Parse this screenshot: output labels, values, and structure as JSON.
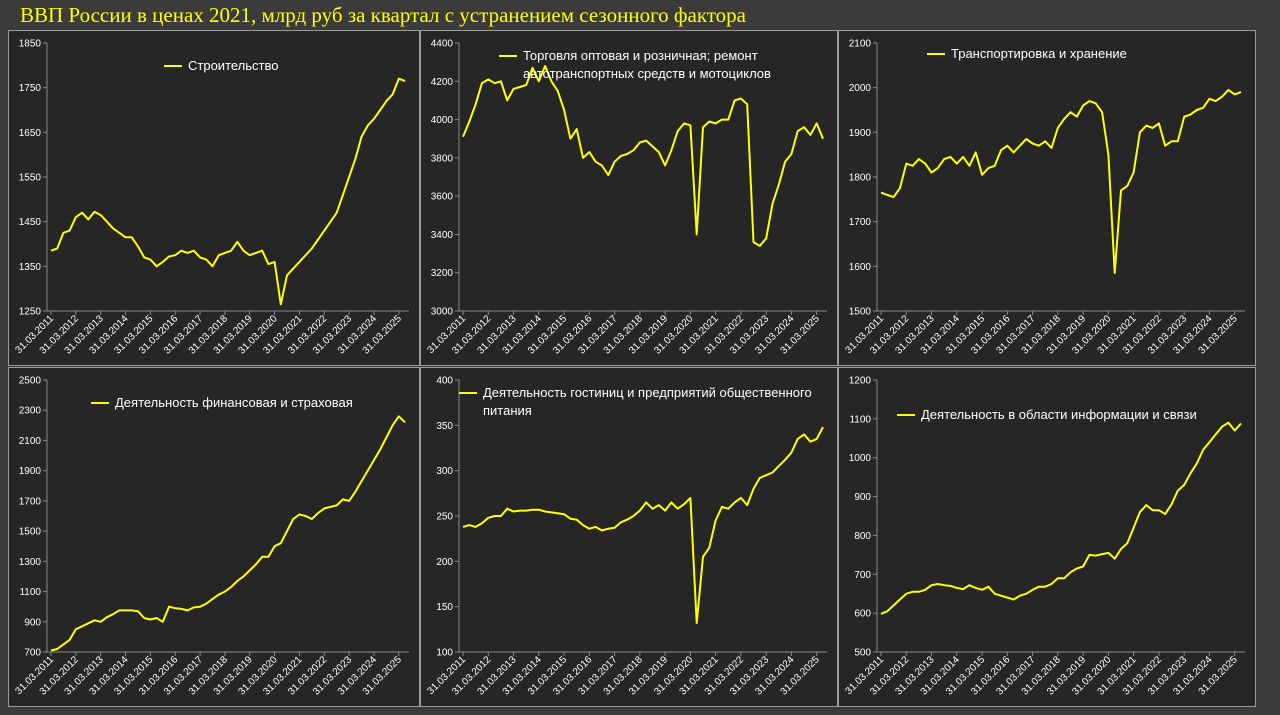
{
  "title": "ВВП России в ценах 2021, млрд руб за квартал с устранением сезонного фактора",
  "chart_data": [
    {
      "type": "line",
      "categories": [
        "31.03.2011",
        null,
        null,
        null,
        "31.03.2012",
        null,
        null,
        null,
        "31.03.2013",
        null,
        null,
        null,
        "31.03.2014",
        null,
        null,
        null,
        "31.03.2015",
        null,
        null,
        null,
        "31.03.2016",
        null,
        null,
        null,
        "31.03.2017",
        null,
        null,
        null,
        "31.03.2018",
        null,
        null,
        null,
        "31.03.2019",
        null,
        null,
        null,
        "31.03.2020",
        null,
        null,
        null,
        "31.03.2021",
        null,
        null,
        null,
        "31.03.2022",
        null,
        null,
        null,
        "31.03.2023",
        null,
        null,
        null,
        "31.03.2024",
        null,
        null,
        null,
        "31.03.2025",
        null
      ],
      "series": [
        {
          "name": "Строительство",
          "color": "#ffff00",
          "values": [
            1385,
            1390,
            1425,
            1430,
            1460,
            1470,
            1455,
            1472,
            1465,
            1450,
            1435,
            1425,
            1415,
            1415,
            1395,
            1370,
            1365,
            1350,
            1360,
            1372,
            1375,
            1385,
            1380,
            1385,
            1370,
            1365,
            1350,
            1375,
            1380,
            1385,
            1405,
            1385,
            1375,
            1380,
            1385,
            1355,
            1360,
            1265,
            1330,
            1345,
            1360,
            1375,
            1390,
            1410,
            1430,
            1450,
            1470,
            1510,
            1550,
            1590,
            1640,
            1665,
            1680,
            1700,
            1720,
            1735,
            1770,
            1765
          ]
        }
      ],
      "ylim": [
        1250,
        1850
      ],
      "yticks": [
        1250,
        1350,
        1450,
        1550,
        1650,
        1750,
        1850
      ]
    },
    {
      "type": "line",
      "categories": [
        "31.03.2011",
        null,
        null,
        null,
        "31.03.2012",
        null,
        null,
        null,
        "31.03.2013",
        null,
        null,
        null,
        "31.03.2014",
        null,
        null,
        null,
        "31.03.2015",
        null,
        null,
        null,
        "31.03.2016",
        null,
        null,
        null,
        "31.03.2017",
        null,
        null,
        null,
        "31.03.2018",
        null,
        null,
        null,
        "31.03.2019",
        null,
        null,
        null,
        "31.03.2020",
        null,
        null,
        null,
        "31.03.2021",
        null,
        null,
        null,
        "31.03.2022",
        null,
        null,
        null,
        "31.03.2023",
        null,
        null,
        null,
        "31.03.2024",
        null,
        null,
        null,
        "31.03.2025",
        null
      ],
      "series": [
        {
          "name": "Торговля оптовая и розничная; ремонт автотранспортных средств и мотоциклов",
          "color": "#ffff00",
          "values": [
            3910,
            3990,
            4080,
            4190,
            4210,
            4190,
            4200,
            4100,
            4160,
            4170,
            4180,
            4270,
            4200,
            4280,
            4200,
            4150,
            4050,
            3900,
            3950,
            3800,
            3830,
            3780,
            3760,
            3710,
            3780,
            3810,
            3820,
            3840,
            3880,
            3890,
            3860,
            3830,
            3760,
            3840,
            3940,
            3980,
            3970,
            3400,
            3960,
            3990,
            3980,
            4000,
            4000,
            4100,
            4110,
            4080,
            3360,
            3340,
            3380,
            3560,
            3660,
            3780,
            3820,
            3940,
            3960,
            3920,
            3980,
            3900
          ]
        }
      ],
      "ylim": [
        3000,
        4400
      ],
      "yticks": [
        3000,
        3200,
        3400,
        3600,
        3800,
        4000,
        4200,
        4400
      ]
    },
    {
      "type": "line",
      "categories": [
        "31.03.2011",
        null,
        null,
        null,
        "31.03.2012",
        null,
        null,
        null,
        "31.03.2013",
        null,
        null,
        null,
        "31.03.2014",
        null,
        null,
        null,
        "31.03.2015",
        null,
        null,
        null,
        "31.03.2016",
        null,
        null,
        null,
        "31.03.2017",
        null,
        null,
        null,
        "31.03.2018",
        null,
        null,
        null,
        "31.03.2019",
        null,
        null,
        null,
        "31.03.2020",
        null,
        null,
        null,
        "31.03.2021",
        null,
        null,
        null,
        "31.03.2022",
        null,
        null,
        null,
        "31.03.2023",
        null,
        null,
        null,
        "31.03.2024",
        null,
        null,
        null,
        "31.03.2025",
        null
      ],
      "series": [
        {
          "name": "Транспортировка и хранение",
          "color": "#ffff00",
          "values": [
            1765,
            1760,
            1755,
            1775,
            1830,
            1825,
            1840,
            1830,
            1810,
            1820,
            1840,
            1845,
            1830,
            1845,
            1825,
            1855,
            1805,
            1820,
            1825,
            1860,
            1870,
            1855,
            1870,
            1885,
            1875,
            1870,
            1880,
            1865,
            1910,
            1930,
            1945,
            1935,
            1960,
            1970,
            1965,
            1945,
            1850,
            1585,
            1770,
            1780,
            1810,
            1900,
            1915,
            1910,
            1920,
            1870,
            1880,
            1880,
            1935,
            1940,
            1950,
            1955,
            1975,
            1970,
            1980,
            1995,
            1985,
            1990
          ]
        }
      ],
      "ylim": [
        1500,
        2100
      ],
      "yticks": [
        1500,
        1600,
        1700,
        1800,
        1900,
        2000,
        2100
      ]
    },
    {
      "type": "line",
      "categories": [
        "31.03.2011",
        null,
        null,
        null,
        "31.03.2012",
        null,
        null,
        null,
        "31.03.2013",
        null,
        null,
        null,
        "31.03.2014",
        null,
        null,
        null,
        "31.03.2015",
        null,
        null,
        null,
        "31.03.2016",
        null,
        null,
        null,
        "31.03.2017",
        null,
        null,
        null,
        "31.03.2018",
        null,
        null,
        null,
        "31.03.2019",
        null,
        null,
        null,
        "31.03.2020",
        null,
        null,
        null,
        "31.03.2021",
        null,
        null,
        null,
        "31.03.2022",
        null,
        null,
        null,
        "31.03.2023",
        null,
        null,
        null,
        "31.03.2024",
        null,
        null,
        null,
        "31.03.2025",
        null
      ],
      "series": [
        {
          "name": "Деятельность финансовая и страховая",
          "color": "#ffff00",
          "values": [
            710,
            720,
            750,
            780,
            850,
            870,
            890,
            910,
            900,
            930,
            950,
            975,
            975,
            975,
            970,
            925,
            915,
            925,
            900,
            1000,
            990,
            985,
            975,
            995,
            1000,
            1020,
            1050,
            1080,
            1100,
            1130,
            1170,
            1200,
            1240,
            1280,
            1330,
            1330,
            1400,
            1420,
            1500,
            1580,
            1610,
            1600,
            1580,
            1620,
            1650,
            1660,
            1670,
            1710,
            1700,
            1760,
            1830,
            1900,
            1970,
            2040,
            2120,
            2200,
            2260,
            2220
          ]
        }
      ],
      "ylim": [
        700,
        2500
      ],
      "yticks": [
        700,
        900,
        1100,
        1300,
        1500,
        1700,
        1900,
        2100,
        2300,
        2500
      ]
    },
    {
      "type": "line",
      "categories": [
        "31.03.2011",
        null,
        null,
        null,
        "31.03.2012",
        null,
        null,
        null,
        "31.03.2013",
        null,
        null,
        null,
        "31.03.2014",
        null,
        null,
        null,
        "31.03.2015",
        null,
        null,
        null,
        "31.03.2016",
        null,
        null,
        null,
        "31.03.2017",
        null,
        null,
        null,
        "31.03.2018",
        null,
        null,
        null,
        "31.03.2019",
        null,
        null,
        null,
        "31.03.2020",
        null,
        null,
        null,
        "31.03.2021",
        null,
        null,
        null,
        "31.03.2022",
        null,
        null,
        null,
        "31.03.2023",
        null,
        null,
        null,
        "31.03.2024",
        null,
        null,
        null,
        "31.03.2025",
        null
      ],
      "series": [
        {
          "name": "Деятельность гостиниц и предприятий общественного питания",
          "color": "#ffff00",
          "values": [
            238,
            240,
            238,
            242,
            248,
            250,
            250,
            258,
            255,
            256,
            256,
            257,
            257,
            255,
            254,
            253,
            252,
            247,
            246,
            240,
            236,
            238,
            234,
            236,
            237,
            243,
            246,
            250,
            256,
            265,
            258,
            262,
            256,
            265,
            258,
            263,
            270,
            132,
            205,
            215,
            245,
            260,
            258,
            265,
            270,
            262,
            280,
            292,
            295,
            298,
            305,
            312,
            320,
            335,
            340,
            332,
            335,
            348
          ]
        }
      ],
      "ylim": [
        100,
        400
      ],
      "yticks": [
        100,
        150,
        200,
        250,
        300,
        350,
        400
      ]
    },
    {
      "type": "line",
      "categories": [
        "31.03.2011",
        null,
        null,
        null,
        "31.03.2012",
        null,
        null,
        null,
        "31.03.2013",
        null,
        null,
        null,
        "31.03.2014",
        null,
        null,
        null,
        "31.03.2015",
        null,
        null,
        null,
        "31.03.2016",
        null,
        null,
        null,
        "31.03.2017",
        null,
        null,
        null,
        "31.03.2018",
        null,
        null,
        null,
        "31.03.2019",
        null,
        null,
        null,
        "31.03.2020",
        null,
        null,
        null,
        "31.03.2021",
        null,
        null,
        null,
        "31.03.2022",
        null,
        null,
        null,
        "31.03.2023",
        null,
        null,
        null,
        "31.03.2024",
        null,
        null,
        null,
        "31.03.2025",
        null
      ],
      "series": [
        {
          "name": "Деятельность в области информации и связи",
          "color": "#ffff00",
          "values": [
            598,
            605,
            620,
            635,
            650,
            655,
            655,
            660,
            672,
            675,
            672,
            670,
            665,
            662,
            672,
            665,
            660,
            668,
            650,
            645,
            640,
            635,
            645,
            650,
            660,
            668,
            668,
            675,
            690,
            690,
            705,
            715,
            720,
            750,
            748,
            752,
            755,
            740,
            765,
            780,
            820,
            860,
            878,
            865,
            865,
            855,
            880,
            915,
            930,
            960,
            985,
            1020,
            1040,
            1060,
            1080,
            1090,
            1070,
            1088
          ]
        }
      ],
      "ylim": [
        500,
        1200
      ],
      "yticks": [
        500,
        600,
        700,
        800,
        900,
        1000,
        1100,
        1200
      ]
    }
  ]
}
